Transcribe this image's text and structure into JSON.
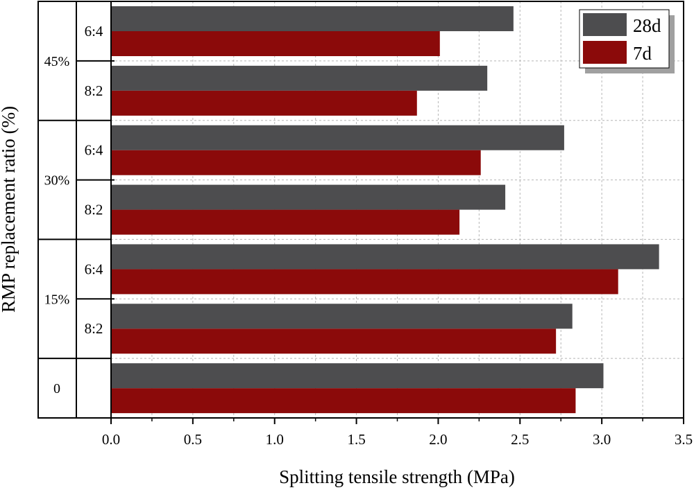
{
  "chart_data": {
    "type": "bar",
    "orientation": "horizontal",
    "xlabel": "Splitting tensile strength (MPa)",
    "ylabel": "RMP replacement ratio (%)",
    "xlim": [
      0,
      3.5
    ],
    "xticks": [
      "0.0",
      "0.5",
      "1.0",
      "1.5",
      "2.0",
      "2.5",
      "3.0",
      "3.5"
    ],
    "grid": true,
    "legend_position": "top-right",
    "groups": [
      {
        "label": "45%",
        "categories": [
          "6:4",
          "8:2"
        ]
      },
      {
        "label": "30%",
        "categories": [
          "6:4",
          "8:2"
        ]
      },
      {
        "label": "15%",
        "categories": [
          "6:4",
          "8:2"
        ]
      },
      {
        "label": "0",
        "categories": [
          ""
        ]
      }
    ],
    "series": [
      {
        "name": "28d",
        "color": "#4d4d4f",
        "values": [
          2.46,
          2.3,
          2.77,
          2.41,
          3.35,
          2.82,
          3.01
        ]
      },
      {
        "name": "7d",
        "color": "#8b0a0a",
        "values": [
          2.01,
          1.87,
          2.26,
          2.13,
          3.1,
          2.72,
          2.84
        ]
      }
    ]
  }
}
